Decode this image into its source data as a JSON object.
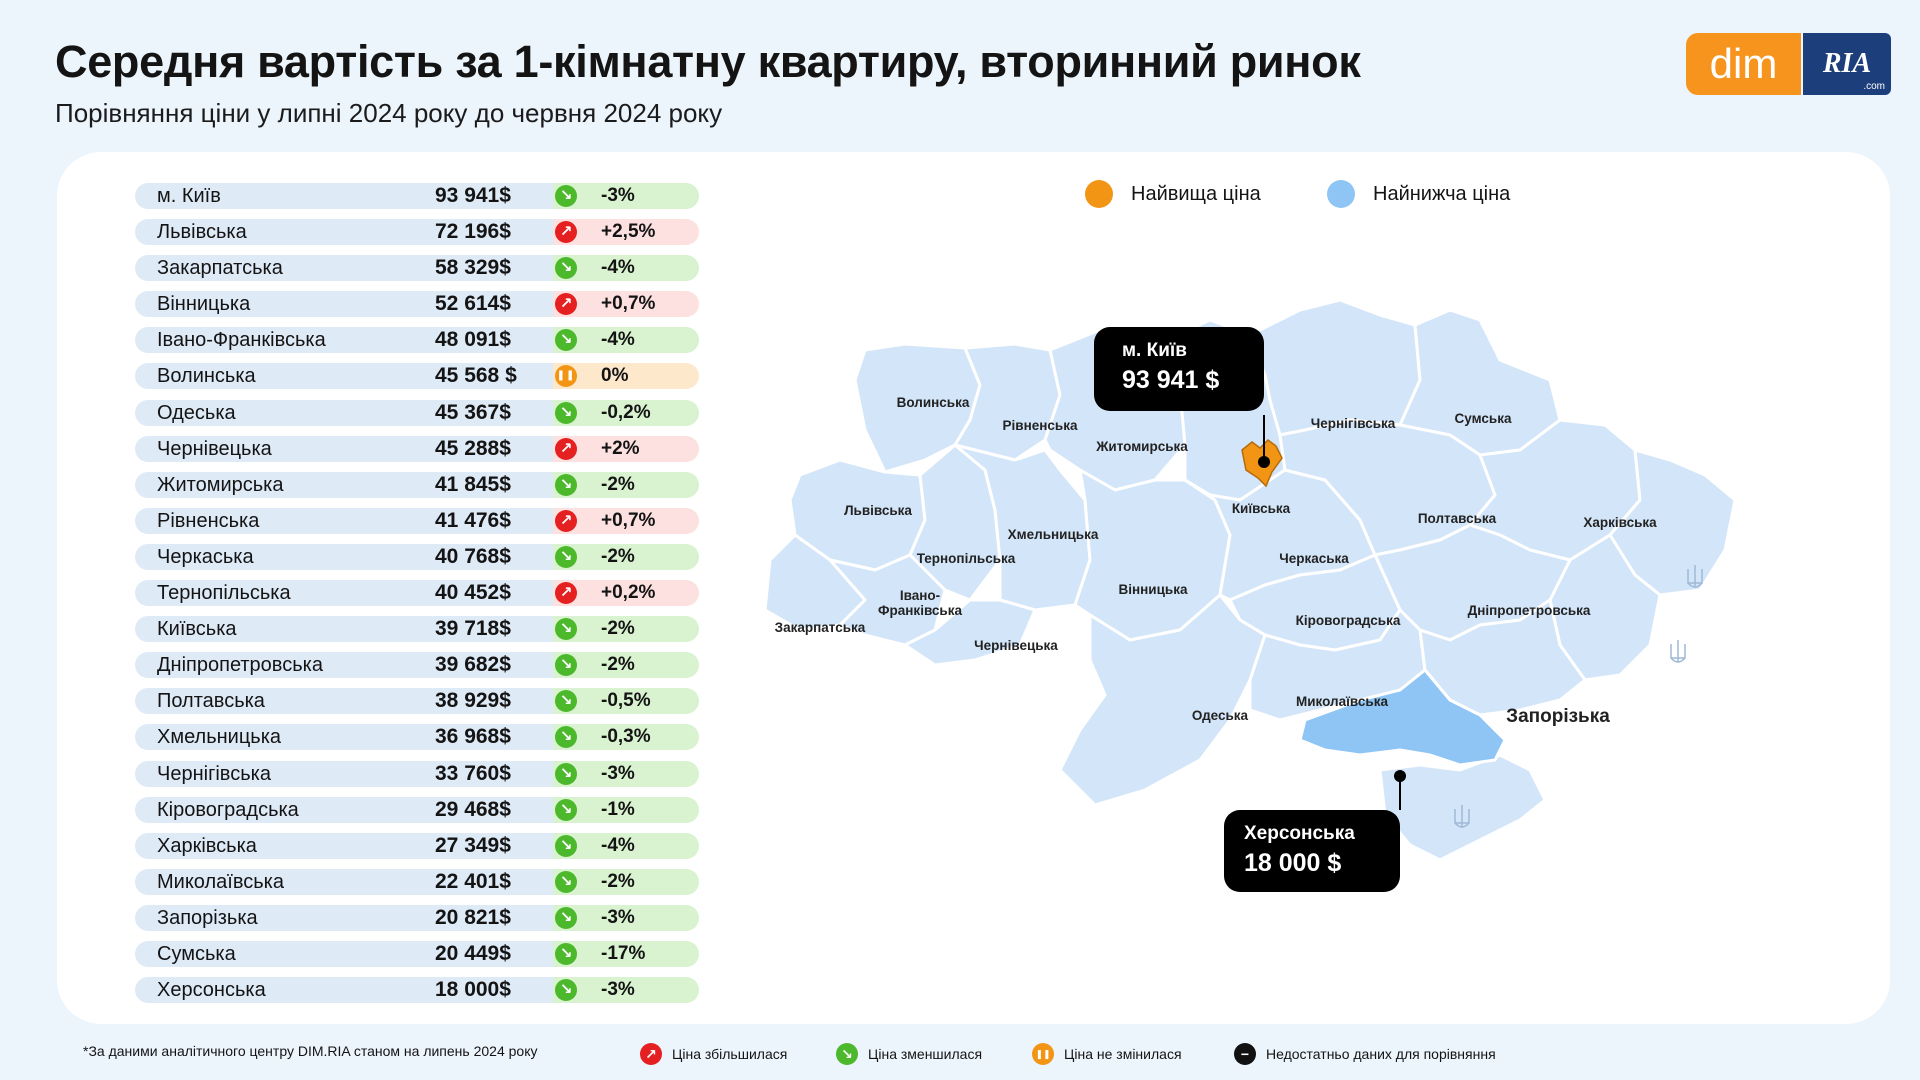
{
  "title": "Середня вартість за 1-кімнатну квартиру, вторинний ринок",
  "subtitle": "Порівняння ціни у липні 2024 року до червня 2024 року",
  "logo": {
    "dim": "dim",
    "ria": "RIA",
    "com": ".com"
  },
  "colors": {
    "accent_orange": "#f7941d",
    "highest": "#f39514",
    "lowest": "#8ec5f5",
    "up": "#e42020",
    "down": "#4cb82b",
    "same": "#f39514"
  },
  "rows": [
    {
      "name": "м. Київ",
      "price": "93 941$",
      "trend": "down",
      "change": "-3%"
    },
    {
      "name": "Львівська",
      "price": "72 196$",
      "trend": "up",
      "change": "+2,5%"
    },
    {
      "name": "Закарпатська",
      "price": "58 329$",
      "trend": "down",
      "change": "-4%"
    },
    {
      "name": "Вінницька",
      "price": "52 614$",
      "trend": "up",
      "change": "+0,7%"
    },
    {
      "name": "Івано-Франківська",
      "price": "48 091$",
      "trend": "down",
      "change": "-4%"
    },
    {
      "name": "Волинська",
      "price": "45 568 $",
      "trend": "same",
      "change": "0%"
    },
    {
      "name": "Одеська",
      "price": "45 367$",
      "trend": "down",
      "change": "-0,2%"
    },
    {
      "name": "Чернівецька",
      "price": "45 288$",
      "trend": "up",
      "change": "+2%"
    },
    {
      "name": "Житомирська",
      "price": "41 845$",
      "trend": "down",
      "change": "-2%"
    },
    {
      "name": "Рівненська",
      "price": "41 476$",
      "trend": "up",
      "change": "+0,7%"
    },
    {
      "name": "Черкаська",
      "price": "40 768$",
      "trend": "down",
      "change": "-2%"
    },
    {
      "name": "Тернопільська",
      "price": "40 452$",
      "trend": "up",
      "change": "+0,2%"
    },
    {
      "name": "Київська",
      "price": "39 718$",
      "trend": "down",
      "change": "-2%"
    },
    {
      "name": "Дніпропетровська",
      "price": "39 682$",
      "trend": "down",
      "change": "-2%"
    },
    {
      "name": "Полтавська",
      "price": "38 929$",
      "trend": "down",
      "change": "-0,5%"
    },
    {
      "name": "Хмельницька",
      "price": "36 968$",
      "trend": "down",
      "change": "-0,3%"
    },
    {
      "name": "Чернігівська",
      "price": "33 760$",
      "trend": "down",
      "change": "-3%"
    },
    {
      "name": "Кіровоградська",
      "price": "29 468$",
      "trend": "down",
      "change": "-1%"
    },
    {
      "name": "Харківська",
      "price": "27 349$",
      "trend": "down",
      "change": "-4%"
    },
    {
      "name": "Миколаївська",
      "price": "22 401$",
      "trend": "down",
      "change": "-2%"
    },
    {
      "name": "Запорізька",
      "price": "20 821$",
      "trend": "down",
      "change": "-3%"
    },
    {
      "name": "Сумська",
      "price": "20 449$",
      "trend": "down",
      "change": "-17%"
    },
    {
      "name": "Херсонська",
      "price": "18 000$",
      "trend": "down",
      "change": "-3%"
    }
  ],
  "map_legend": {
    "highest": "Найвища ціна",
    "lowest": "Найнижча ціна"
  },
  "map_labels": {
    "volynska": "Волинська",
    "rivnenska": "Рівненська",
    "zhytomyrska": "Житомирська",
    "chernihivska": "Чернігівська",
    "sumska": "Сумська",
    "lvivska": "Львівська",
    "kyivska": "Київська",
    "khmelnytska": "Хмельницька",
    "poltavska": "Полтавська",
    "kharkivska": "Харківська",
    "ternopilska": "Тернопільська",
    "cherkaska": "Черкаська",
    "ivano_1": "Івано-",
    "ivano_2": "Франківська",
    "vinnytska": "Вінницька",
    "zakarpatska": "Закарпатська",
    "kirovohradska": "Кіровоградська",
    "dnipropetrovska": "Дніпропетровська",
    "chernivetska": "Чернівецька",
    "odeska": "Одеська",
    "mykolaivska": "Миколаївська",
    "zaporizka": "Запорізька"
  },
  "callout_kyiv": {
    "name": "м. Київ",
    "price": "93 941 $"
  },
  "callout_kherson": {
    "name": "Херсонська",
    "price": "18 000 $"
  },
  "footer": {
    "source": "*За даними аналітичного центру DIM.RIA станом на липень 2024 року",
    "up": "Ціна збільшилася",
    "down": "Ціна зменшилася",
    "same": "Ціна не змінилася",
    "nodata": "Недостатньо даних для порівняння"
  }
}
